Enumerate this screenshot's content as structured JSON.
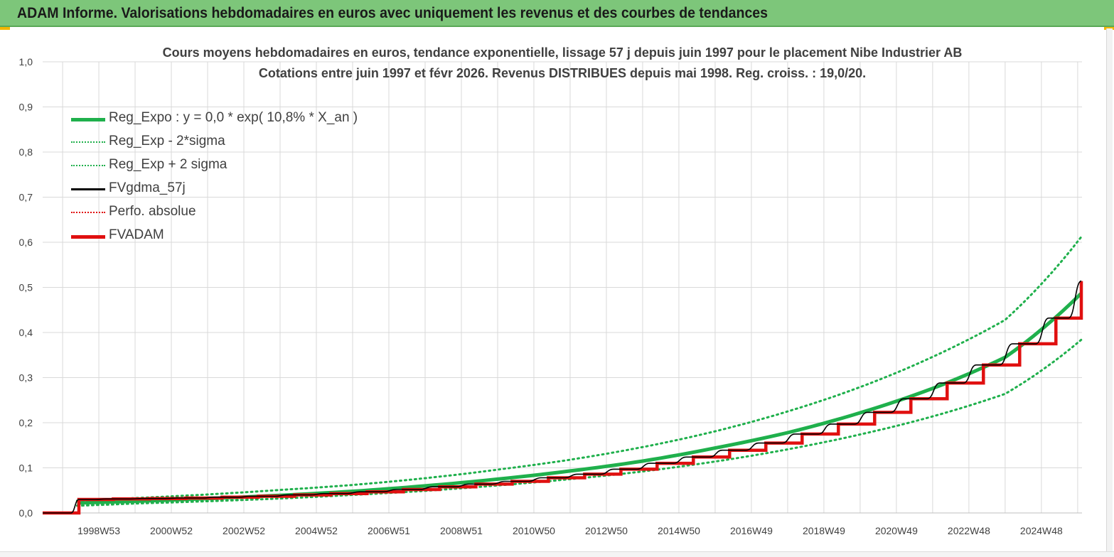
{
  "header": {
    "title": "ADAM Informe. Valorisations hebdomadaires en euros avec uniquement les revenus et des courbes de tendances"
  },
  "colors": {
    "header_bg": "#7dc67a",
    "reg_expo": "#1fb04c",
    "reg_band": "#1fb04c",
    "fvgdma": "#000000",
    "perfo": "#e01010",
    "fvadam": "#e01010",
    "grid": "#d9d9d9"
  },
  "chart_data": {
    "type": "line",
    "title": "Cours moyens hebdomadaires en euros, tendance exponentielle, lissage 57 j depuis juin 1997 pour le placement  Nibe Industrier AB",
    "subtitle": "Cotations entre juin 1997 et févr 2026. Revenus DISTRIBUES depuis mai 1998. Reg. croiss. : 19,0/20.",
    "xlabel": "",
    "ylabel": "",
    "x_range": [
      1997.45,
      2026.12
    ],
    "ylim": [
      0.0,
      1.0
    ],
    "y_ticks": [
      "0,0",
      "0,1",
      "0,2",
      "0,3",
      "0,4",
      "0,5",
      "0,6",
      "0,7",
      "0,8",
      "0,9",
      "1,0"
    ],
    "x_tick_labels": [
      "1998W53",
      "2000W52",
      "2002W52",
      "2004W52",
      "2006W51",
      "2008W51",
      "2010W50",
      "2012W50",
      "2014W50",
      "2016W49",
      "2018W49",
      "2020W49",
      "2022W48",
      "2024W48"
    ],
    "x_tick_values": [
      1999.0,
      2001.0,
      2003.0,
      2005.0,
      2007.0,
      2009.0,
      2011.0,
      2013.0,
      2015.0,
      2017.0,
      2019.0,
      2021.0,
      2023.0,
      2025.0
    ],
    "grid": true,
    "legend_position": "top-left",
    "legend": [
      {
        "label": "Reg_Expo : y = 0,0 * exp( 10,8% *  X_an )",
        "style": "solid-thick",
        "color": "#1fb04c"
      },
      {
        "label": "Reg_Exp - 2*sigma",
        "style": "dotted",
        "color": "#1fb04c"
      },
      {
        "label": "Reg_Exp + 2 sigma",
        "style": "dotted",
        "color": "#1fb04c"
      },
      {
        "label": "FVgdma_57j",
        "style": "solid",
        "color": "#000000"
      },
      {
        "label": "Perfo. absolue",
        "style": "dotted",
        "color": "#e01010"
      },
      {
        "label": "FVADAM",
        "style": "solid-thick",
        "color": "#e01010"
      }
    ],
    "series": [
      {
        "name": "Reg_Expo : y = 0,0 * exp( 10,8% *  X_an )",
        "x": [
          1998.4,
          2000,
          2002,
          2004,
          2006,
          2008,
          2010,
          2012,
          2014,
          2016,
          2018,
          2020,
          2022,
          2024,
          2026.1
        ],
        "values": [
          0.022,
          0.026,
          0.032,
          0.039,
          0.048,
          0.06,
          0.075,
          0.093,
          0.115,
          0.144,
          0.178,
          0.222,
          0.276,
          0.345,
          0.487
        ]
      },
      {
        "name": "Reg_Exp - 2*sigma",
        "x": [
          1998.4,
          2000,
          2002,
          2004,
          2006,
          2008,
          2010,
          2012,
          2014,
          2016,
          2018,
          2020,
          2022,
          2024,
          2026.1
        ],
        "values": [
          0.016,
          0.021,
          0.026,
          0.032,
          0.04,
          0.049,
          0.061,
          0.075,
          0.092,
          0.114,
          0.141,
          0.174,
          0.214,
          0.264,
          0.384
        ]
      },
      {
        "name": "Reg_Exp + 2 sigma",
        "x": [
          1998.4,
          2000,
          2002,
          2004,
          2006,
          2008,
          2010,
          2012,
          2014,
          2016,
          2018,
          2020,
          2022,
          2024,
          2026.1
        ],
        "values": [
          0.027,
          0.033,
          0.041,
          0.051,
          0.062,
          0.077,
          0.096,
          0.118,
          0.146,
          0.181,
          0.225,
          0.279,
          0.346,
          0.428,
          0.612
        ]
      },
      {
        "name": "FVgdma_57j",
        "x": [
          1997.45,
          1997.9,
          1998.45,
          1999.2,
          2000.2,
          2001.2,
          2002.2,
          2003.2,
          2004.2,
          2005.2,
          2006.2,
          2007.2,
          2008.2,
          2009.2,
          2010.2,
          2011.2,
          2012.2,
          2013.2,
          2014.2,
          2015.2,
          2016.2,
          2017.2,
          2018.2,
          2019.2,
          2020.2,
          2021.2,
          2022.2,
          2023.2,
          2024.2,
          2025.2,
          2026.1
        ],
        "values": [
          0.0,
          0.0,
          0.03,
          0.031,
          0.032,
          0.033,
          0.035,
          0.037,
          0.04,
          0.043,
          0.047,
          0.052,
          0.058,
          0.064,
          0.07,
          0.078,
          0.086,
          0.097,
          0.11,
          0.124,
          0.139,
          0.155,
          0.175,
          0.197,
          0.223,
          0.253,
          0.288,
          0.328,
          0.375,
          0.432,
          0.514
        ]
      },
      {
        "name": "FVADAM",
        "x": [
          1997.45,
          1997.9,
          1998.45,
          1999.4,
          2000.4,
          2001.4,
          2002.4,
          2003.4,
          2004.4,
          2005.4,
          2006.4,
          2007.4,
          2008.4,
          2009.4,
          2010.4,
          2011.4,
          2012.4,
          2013.4,
          2014.4,
          2015.4,
          2016.4,
          2017.4,
          2018.4,
          2019.4,
          2020.4,
          2021.4,
          2022.4,
          2023.4,
          2024.4,
          2025.4,
          2026.1
        ],
        "values": [
          0.0,
          0.0,
          0.03,
          0.031,
          0.032,
          0.033,
          0.035,
          0.037,
          0.04,
          0.043,
          0.047,
          0.052,
          0.058,
          0.064,
          0.07,
          0.078,
          0.086,
          0.097,
          0.11,
          0.124,
          0.139,
          0.155,
          0.175,
          0.197,
          0.223,
          0.253,
          0.288,
          0.328,
          0.375,
          0.432,
          0.514
        ],
        "note_shape": "step"
      }
    ]
  }
}
